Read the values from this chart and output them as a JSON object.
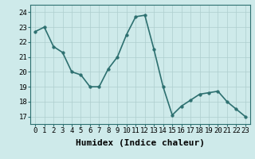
{
  "x": [
    0,
    1,
    2,
    3,
    4,
    5,
    6,
    7,
    8,
    9,
    10,
    11,
    12,
    13,
    14,
    15,
    16,
    17,
    18,
    19,
    20,
    21,
    22,
    23
  ],
  "y": [
    22.7,
    23.0,
    21.7,
    21.3,
    20.0,
    19.8,
    19.0,
    19.0,
    20.2,
    21.0,
    22.5,
    23.7,
    23.8,
    21.5,
    19.0,
    17.1,
    17.7,
    18.1,
    18.5,
    18.6,
    18.7,
    18.0,
    17.5,
    17.0
  ],
  "line_color": "#2d7070",
  "marker": "o",
  "marker_size": 2.5,
  "bg_color": "#ceeaea",
  "grid_color": "#aecece",
  "xlabel": "Humidex (Indice chaleur)",
  "ylim": [
    16.5,
    24.5
  ],
  "xlim": [
    -0.5,
    23.5
  ],
  "yticks": [
    17,
    18,
    19,
    20,
    21,
    22,
    23,
    24
  ],
  "xticks": [
    0,
    1,
    2,
    3,
    4,
    5,
    6,
    7,
    8,
    9,
    10,
    11,
    12,
    13,
    14,
    15,
    16,
    17,
    18,
    19,
    20,
    21,
    22,
    23
  ],
  "tick_fontsize": 6.5,
  "xlabel_fontsize": 8,
  "line_width": 1.2,
  "spine_color": "#2d7070"
}
